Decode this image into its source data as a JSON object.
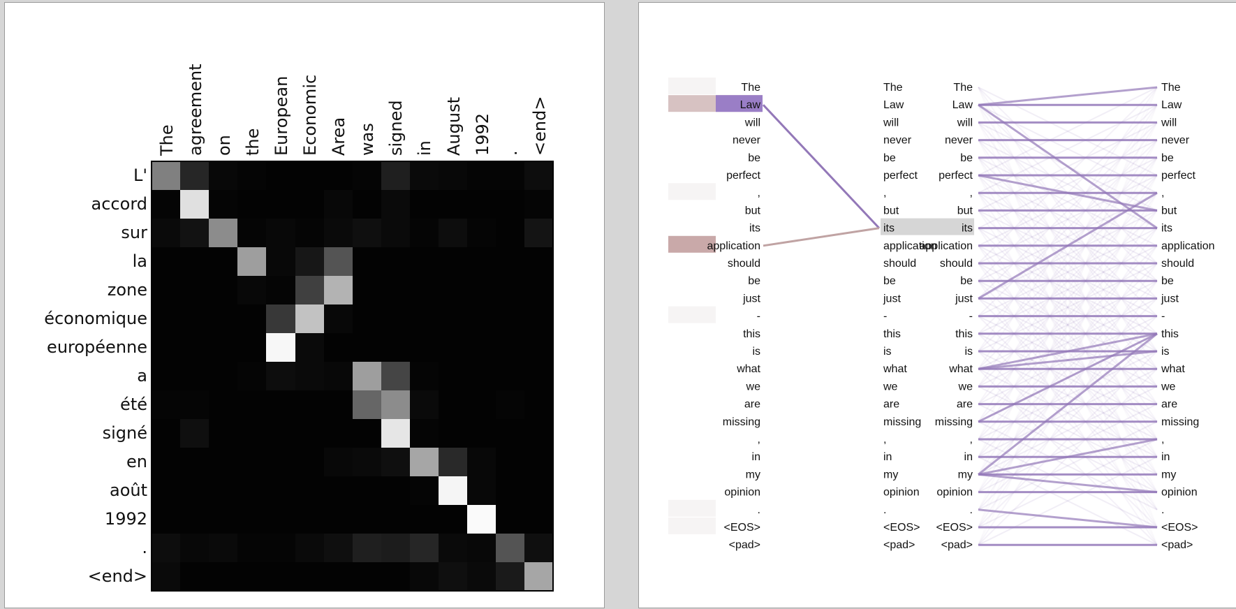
{
  "attention_matrix": {
    "title": "",
    "source_tokens": [
      "The",
      "agreement",
      "on",
      "the",
      "European",
      "Economic",
      "Area",
      "was",
      "signed",
      "in",
      "August",
      "1992",
      ".",
      "<end>"
    ],
    "target_tokens": [
      "L'",
      "accord",
      "sur",
      "la",
      "zone",
      "économique",
      "européenne",
      "a",
      "été",
      "signé",
      "en",
      "août",
      "1992",
      ".",
      "<end>"
    ]
  },
  "chart_data": {
    "type": "heatmap",
    "title": "",
    "xlabel": "",
    "ylabel": "",
    "x": [
      "The",
      "agreement",
      "on",
      "the",
      "European",
      "Economic",
      "Area",
      "was",
      "signed",
      "in",
      "August",
      "1992",
      ".",
      "<end>"
    ],
    "y": [
      "L'",
      "accord",
      "sur",
      "la",
      "zone",
      "économique",
      "européenne",
      "a",
      "été",
      "signé",
      "en",
      "août",
      "1992",
      ".",
      "<end>"
    ],
    "colormap": "grayscale",
    "range": [
      0,
      1
    ],
    "values": [
      [
        0.5,
        0.15,
        0.03,
        0.02,
        0.01,
        0.01,
        0.01,
        0.02,
        0.12,
        0.04,
        0.03,
        0.02,
        0.02,
        0.05
      ],
      [
        0.02,
        0.88,
        0.02,
        0.01,
        0.01,
        0.01,
        0.03,
        0.01,
        0.04,
        0.01,
        0.01,
        0.01,
        0.01,
        0.02
      ],
      [
        0.04,
        0.07,
        0.55,
        0.02,
        0.03,
        0.02,
        0.04,
        0.06,
        0.04,
        0.02,
        0.05,
        0.02,
        0.01,
        0.08
      ],
      [
        0.01,
        0.01,
        0.01,
        0.62,
        0.03,
        0.09,
        0.33,
        0.01,
        0.01,
        0.01,
        0.01,
        0.01,
        0.01,
        0.01
      ],
      [
        0.01,
        0.01,
        0.01,
        0.03,
        0.02,
        0.25,
        0.7,
        0.01,
        0.01,
        0.01,
        0.01,
        0.01,
        0.01,
        0.01
      ],
      [
        0.01,
        0.01,
        0.01,
        0.01,
        0.22,
        0.76,
        0.03,
        0.01,
        0.01,
        0.01,
        0.01,
        0.01,
        0.01,
        0.01
      ],
      [
        0.01,
        0.01,
        0.01,
        0.01,
        0.97,
        0.04,
        0.01,
        0.01,
        0.01,
        0.01,
        0.01,
        0.01,
        0.01,
        0.01
      ],
      [
        0.01,
        0.01,
        0.01,
        0.02,
        0.05,
        0.04,
        0.03,
        0.62,
        0.27,
        0.02,
        0.01,
        0.01,
        0.01,
        0.01
      ],
      [
        0.02,
        0.02,
        0.01,
        0.01,
        0.01,
        0.01,
        0.01,
        0.4,
        0.55,
        0.04,
        0.01,
        0.01,
        0.02,
        0.01
      ],
      [
        0.01,
        0.06,
        0.01,
        0.01,
        0.01,
        0.01,
        0.01,
        0.01,
        0.9,
        0.02,
        0.01,
        0.01,
        0.01,
        0.01
      ],
      [
        0.01,
        0.01,
        0.01,
        0.01,
        0.01,
        0.01,
        0.03,
        0.04,
        0.06,
        0.65,
        0.16,
        0.03,
        0.01,
        0.01
      ],
      [
        0.01,
        0.01,
        0.01,
        0.01,
        0.01,
        0.01,
        0.01,
        0.01,
        0.01,
        0.02,
        0.96,
        0.03,
        0.01,
        0.01
      ],
      [
        0.01,
        0.01,
        0.01,
        0.01,
        0.01,
        0.01,
        0.01,
        0.01,
        0.01,
        0.01,
        0.01,
        0.98,
        0.01,
        0.01
      ],
      [
        0.05,
        0.03,
        0.04,
        0.02,
        0.02,
        0.04,
        0.06,
        0.12,
        0.11,
        0.15,
        0.04,
        0.03,
        0.33,
        0.06
      ],
      [
        0.04,
        0.01,
        0.01,
        0.01,
        0.01,
        0.01,
        0.01,
        0.01,
        0.01,
        0.03,
        0.06,
        0.04,
        0.1,
        0.65
      ]
    ]
  },
  "flow_viz": {
    "tokens": [
      "The",
      "Law",
      "will",
      "never",
      "be",
      "perfect",
      ",",
      "but",
      "its",
      "application",
      "should",
      "be",
      "just",
      "-",
      "this",
      "is",
      "what",
      "we",
      "are",
      "missing",
      ",",
      "in",
      "my",
      "opinion",
      ".",
      "<EOS>",
      "<pad>"
    ],
    "left_bars": [
      0.02,
      1.0,
      0.0,
      0.0,
      0.0,
      0.0,
      0.03,
      0.0,
      0.0,
      0.5,
      0.0,
      0.0,
      0.0,
      0.02,
      0.0,
      0.0,
      0.0,
      0.0,
      0.0,
      0.0,
      0.0,
      0.0,
      0.0,
      0.0,
      0.04,
      0.03,
      0.0
    ],
    "selected_left_index": 1,
    "selected_middle_index": 8,
    "middle_links": [
      {
        "from": 1,
        "to": 8,
        "weight": 0.85,
        "color": "#9378b8"
      },
      {
        "from": 9,
        "to": 8,
        "weight": 0.55,
        "color": "#c0a3a3"
      }
    ],
    "strong_links": [
      [
        1,
        0
      ],
      [
        1,
        1
      ],
      [
        1,
        8
      ],
      [
        2,
        2
      ],
      [
        3,
        3
      ],
      [
        4,
        4
      ],
      [
        5,
        5
      ],
      [
        6,
        6
      ],
      [
        7,
        7
      ],
      [
        8,
        8
      ],
      [
        9,
        9
      ],
      [
        10,
        10
      ],
      [
        11,
        11
      ],
      [
        12,
        12
      ],
      [
        13,
        13
      ],
      [
        14,
        14
      ],
      [
        15,
        15
      ],
      [
        16,
        16
      ],
      [
        16,
        14
      ],
      [
        16,
        15
      ],
      [
        17,
        17
      ],
      [
        18,
        18
      ],
      [
        19,
        19
      ],
      [
        20,
        20
      ],
      [
        21,
        21
      ],
      [
        22,
        22
      ],
      [
        22,
        20
      ],
      [
        22,
        23
      ],
      [
        22,
        14
      ],
      [
        23,
        23
      ],
      [
        24,
        25
      ],
      [
        25,
        25
      ],
      [
        26,
        26
      ],
      [
        19,
        14
      ],
      [
        12,
        6
      ],
      [
        5,
        7
      ]
    ],
    "accent_color": "#9378b8",
    "highlight_color": "#d6d6d6",
    "bar_color_primary": "#9a7ec6",
    "bar_color_secondary": "#c9a9a9"
  }
}
